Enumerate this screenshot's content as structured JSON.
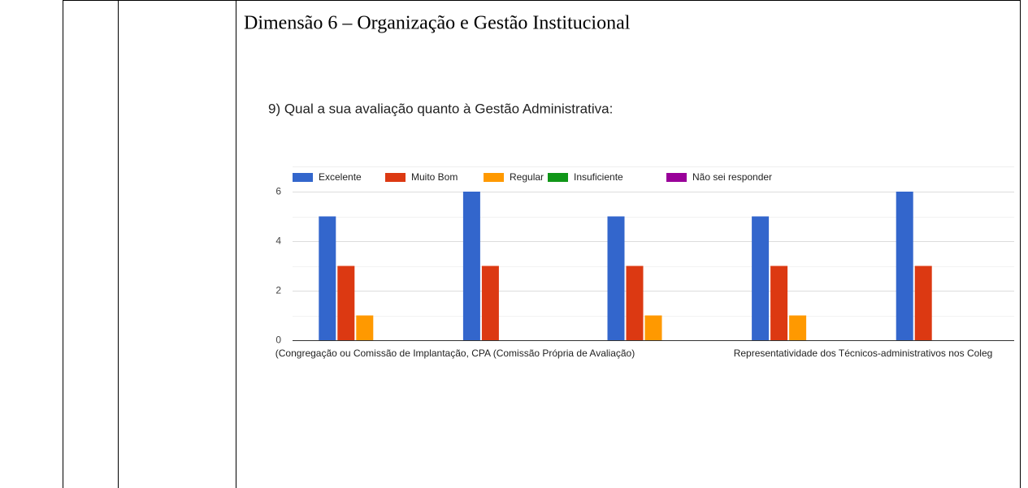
{
  "heading": "Dimensão 6 – Organização e Gestão Institucional",
  "chart_data": {
    "type": "bar",
    "title": "9) Qual a sua avaliação quanto à Gestão Administrativa:",
    "categories": [
      null,
      "(Congregação ou Comissão de Implantação, CPA (Comissão Própria de Avaliação)",
      null,
      "Representatividade dos Técnicos-administrativos nos Coleg",
      null
    ],
    "series": [
      {
        "name": "Excelente",
        "color": "#3366cc",
        "values": [
          5,
          6,
          5,
          5,
          6
        ]
      },
      {
        "name": "Muito Bom",
        "color": "#dc3912",
        "values": [
          3,
          3,
          3,
          3,
          3
        ]
      },
      {
        "name": "Regular",
        "color": "#ff9900",
        "values": [
          1,
          0,
          1,
          1,
          0
        ]
      },
      {
        "name": "Insuficiente",
        "color": "#109618",
        "values": [
          0,
          0,
          0,
          0,
          0
        ]
      },
      {
        "name": "Não sei responder",
        "color": "#990099",
        "values": [
          0,
          0,
          0,
          0,
          0
        ]
      }
    ],
    "ylim": [
      0,
      6
    ],
    "yticks": [
      0,
      2,
      4,
      6
    ],
    "minor_yticks": [
      1,
      3,
      5
    ],
    "grid": true,
    "legend": "top"
  }
}
